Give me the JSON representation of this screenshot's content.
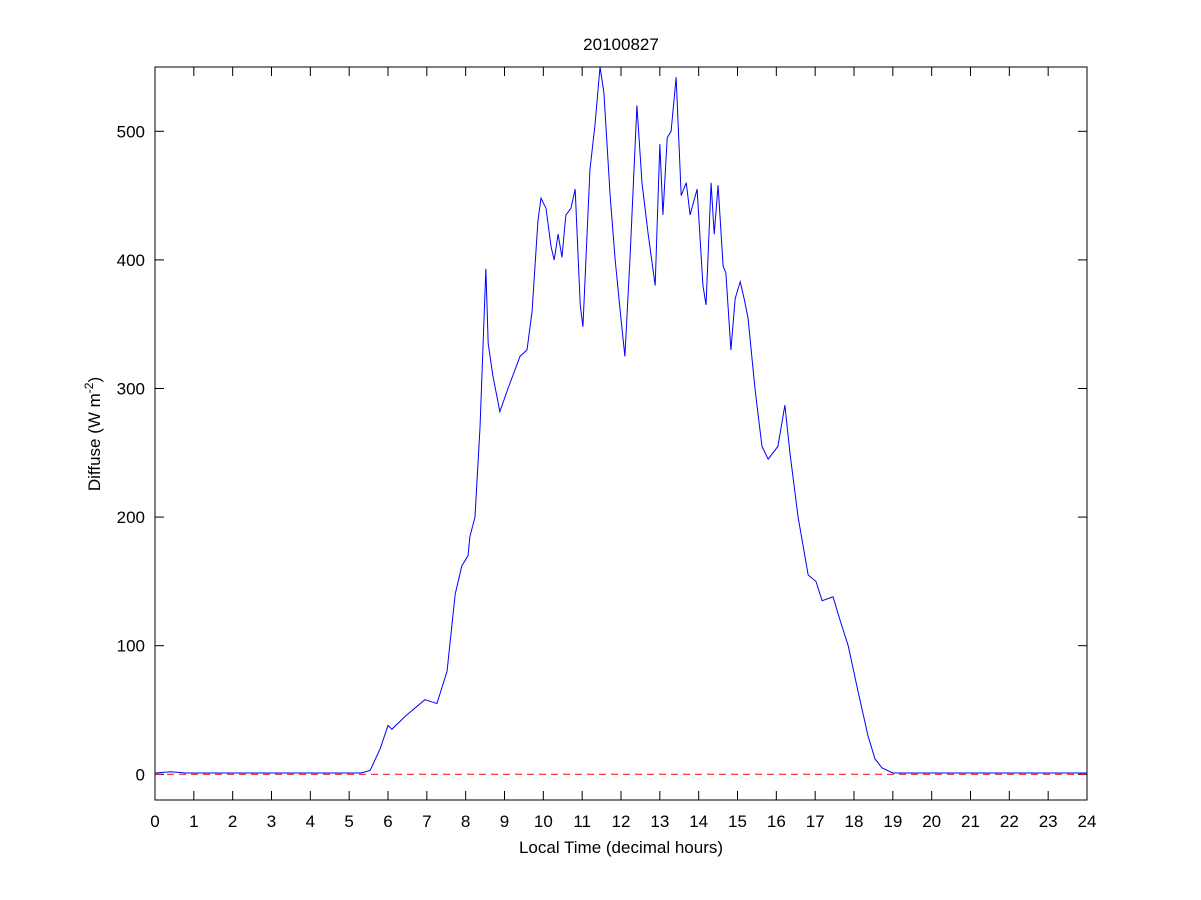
{
  "chart_data": {
    "type": "line",
    "title": "20100827",
    "xlabel": "Local Time (decimal hours)",
    "ylabel": "Diffuse (W m",
    "ylabel_superscript": "-2",
    "ylabel_end": ")",
    "xlim": [
      0,
      24
    ],
    "xticks": [
      0,
      1,
      2,
      3,
      4,
      5,
      6,
      7,
      8,
      9,
      10,
      11,
      12,
      13,
      14,
      15,
      16,
      17,
      18,
      19,
      20,
      21,
      22,
      23,
      24
    ],
    "ylim": [
      -20,
      550
    ],
    "yticks": [
      0,
      100,
      200,
      300,
      400,
      500
    ],
    "grid": false,
    "hline": {
      "value": 0,
      "color": "#ff0000",
      "style": "dashed"
    },
    "series": [
      {
        "color": "#0000ff",
        "x": [
          0,
          0.4,
          0.8,
          5.0,
          5.3,
          5.54,
          5.8,
          6.0,
          6.1,
          6.44,
          6.95,
          7.26,
          7.52,
          7.73,
          7.9,
          8.06,
          8.11,
          8.24,
          8.37,
          8.52,
          8.58,
          8.7,
          8.88,
          9.09,
          9.4,
          9.58,
          9.71,
          9.86,
          9.94,
          10.07,
          10.2,
          10.28,
          10.38,
          10.48,
          10.58,
          10.71,
          10.82,
          10.95,
          11.02,
          11.2,
          11.33,
          11.46,
          11.56,
          11.72,
          11.85,
          11.98,
          12.1,
          12.23,
          12.41,
          12.54,
          12.7,
          12.88,
          13.0,
          13.08,
          13.19,
          13.29,
          13.42,
          13.55,
          13.68,
          13.78,
          13.96,
          14.11,
          14.19,
          14.32,
          14.4,
          14.5,
          14.63,
          14.7,
          14.83,
          14.94,
          15.07,
          15.17,
          15.27,
          15.45,
          15.63,
          15.79,
          16.04,
          16.22,
          16.35,
          16.56,
          16.82,
          17.02,
          17.18,
          17.46,
          17.64,
          17.85,
          18.1,
          18.36,
          18.54,
          18.72,
          19.0,
          24
        ],
        "values": [
          1,
          2,
          1,
          1,
          1,
          3,
          20,
          38,
          35,
          45,
          58,
          55,
          80,
          140,
          162,
          170,
          185,
          200,
          270,
          393,
          335,
          310,
          282,
          300,
          325,
          330,
          360,
          430,
          448,
          440,
          410,
          400,
          420,
          402,
          435,
          440,
          455,
          365,
          348,
          470,
          505,
          550,
          530,
          450,
          400,
          360,
          325,
          400,
          520,
          460,
          420,
          380,
          490,
          435,
          495,
          500,
          542,
          450,
          460,
          435,
          455,
          380,
          365,
          460,
          420,
          458,
          395,
          390,
          330,
          370,
          383,
          370,
          355,
          300,
          255,
          245,
          255,
          287,
          250,
          200,
          155,
          150,
          135,
          138,
          120,
          100,
          65,
          30,
          12,
          5,
          1,
          1
        ]
      }
    ]
  }
}
